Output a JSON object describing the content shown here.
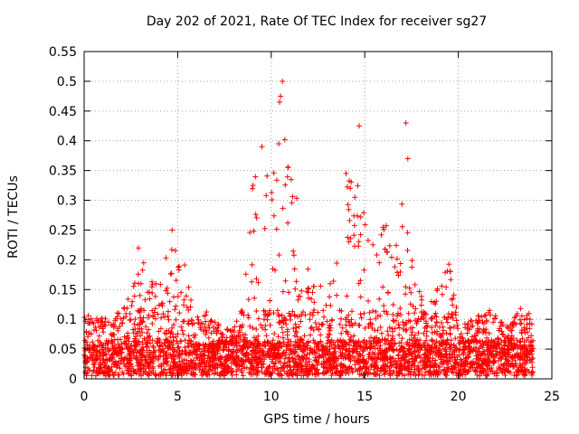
{
  "chart_data": {
    "type": "scatter",
    "title": "Day 202 of 2021, Rate Of TEC Index for receiver sg27",
    "xlabel": "GPS time / hours",
    "ylabel": "ROTI / TECUs",
    "xlim": [
      0,
      25
    ],
    "ylim": [
      0,
      0.55
    ],
    "xticks": [
      0,
      5,
      10,
      15,
      20,
      25
    ],
    "yticks": [
      0,
      0.05,
      0.1,
      0.15,
      0.2,
      0.25,
      0.3,
      0.35,
      0.4,
      0.45,
      0.5,
      0.55
    ],
    "ytick_labels": [
      "0",
      "0.05",
      "0.1",
      "0.15",
      "0.2",
      "0.25",
      "0.3",
      "0.35",
      "0.4",
      "0.45",
      "0.5",
      "0.55"
    ],
    "grid": true,
    "marker": "+",
    "color": "#ff0000",
    "series": [
      {
        "name": "ROTI",
        "envelope": {
          "x": [
            0,
            0.5,
            1,
            1.5,
            2,
            2.5,
            3,
            3.5,
            4,
            4.5,
            5,
            5.5,
            6,
            6.5,
            7,
            7.5,
            8,
            8.5,
            9,
            9.5,
            10,
            10.5,
            11,
            11.5,
            12,
            12.5,
            13,
            13.5,
            14,
            14.5,
            15,
            15.5,
            16,
            16.5,
            17,
            17.5,
            18,
            18.5,
            19,
            19.5,
            20,
            20.5,
            21,
            21.5,
            22,
            22.5,
            23,
            23.5,
            24
          ],
          "y_high": [
            0.11,
            0.1,
            0.1,
            0.09,
            0.12,
            0.14,
            0.21,
            0.16,
            0.19,
            0.21,
            0.24,
            0.17,
            0.12,
            0.11,
            0.09,
            0.08,
            0.08,
            0.12,
            0.32,
            0.38,
            0.35,
            0.47,
            0.35,
            0.29,
            0.21,
            0.16,
            0.15,
            0.2,
            0.34,
            0.34,
            0.27,
            0.24,
            0.27,
            0.24,
            0.32,
            0.2,
            0.15,
            0.13,
            0.16,
            0.19,
            0.1,
            0.09,
            0.1,
            0.11,
            0.12,
            0.08,
            0.1,
            0.12,
            0.1
          ]
        },
        "outliers": [
          {
            "x": 10.6,
            "y": 0.5
          },
          {
            "x": 10.5,
            "y": 0.475
          },
          {
            "x": 10.45,
            "y": 0.465
          },
          {
            "x": 14.7,
            "y": 0.425
          },
          {
            "x": 17.2,
            "y": 0.43
          },
          {
            "x": 10.4,
            "y": 0.395
          },
          {
            "x": 9.5,
            "y": 0.39
          },
          {
            "x": 17.3,
            "y": 0.37
          },
          {
            "x": 10.9,
            "y": 0.355
          },
          {
            "x": 14.0,
            "y": 0.345
          },
          {
            "x": 4.7,
            "y": 0.25
          },
          {
            "x": 2.9,
            "y": 0.22
          }
        ]
      }
    ]
  }
}
